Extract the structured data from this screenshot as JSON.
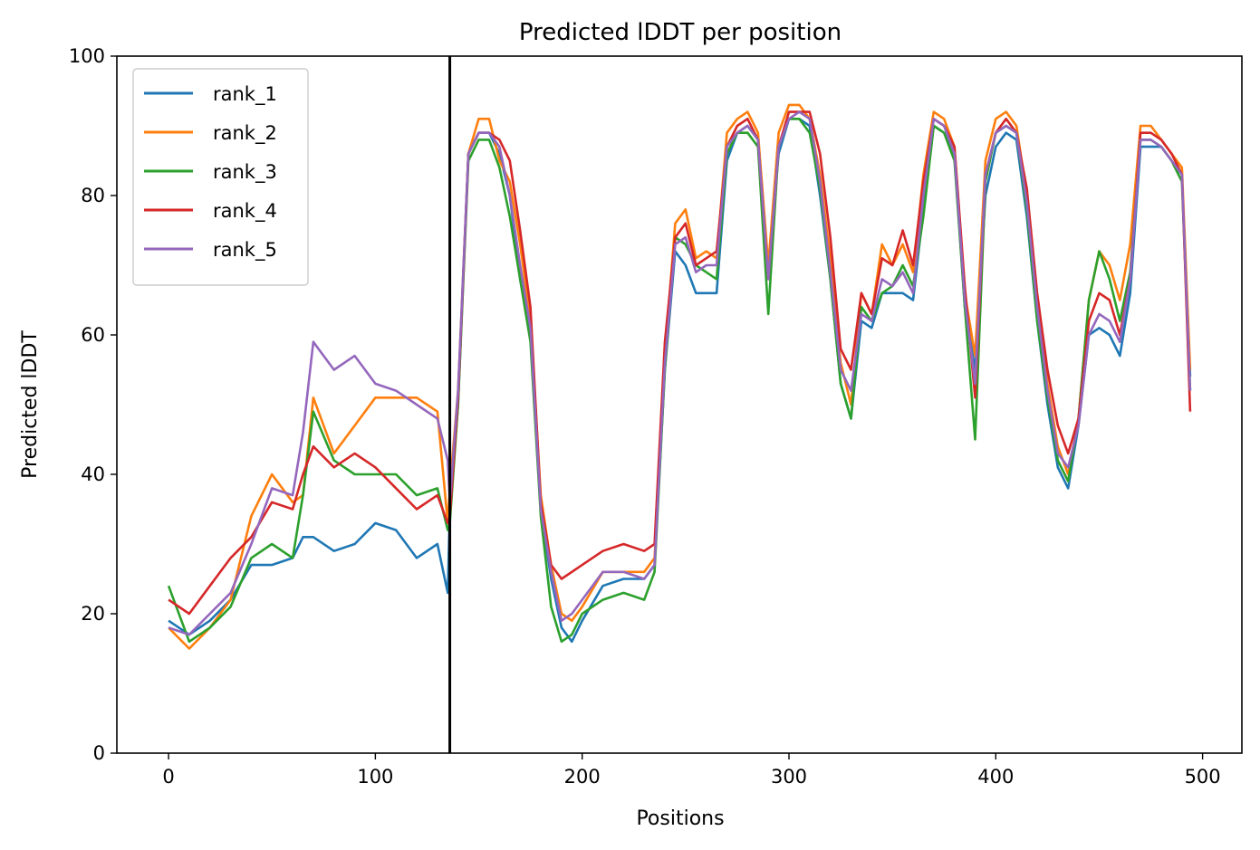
{
  "chart_data": {
    "type": "line",
    "title": "Predicted lDDT per position",
    "xlabel": "Positions",
    "ylabel": "Predicted lDDT",
    "xlim": [
      -25,
      519
    ],
    "ylim": [
      0,
      100
    ],
    "xticks": [
      0,
      100,
      200,
      300,
      400,
      500
    ],
    "yticks": [
      0,
      20,
      40,
      60,
      80,
      100
    ],
    "grid": false,
    "legend_position": "upper-left",
    "vline_x": 136,
    "colors": {
      "rank_1": "#1f77b4",
      "rank_2": "#ff7f0e",
      "rank_3": "#2ca02c",
      "rank_4": "#d62728",
      "rank_5": "#9467bd",
      "vline": "#000000"
    },
    "x": [
      0,
      10,
      20,
      30,
      40,
      50,
      60,
      65,
      70,
      80,
      90,
      100,
      110,
      120,
      130,
      135,
      136,
      140,
      145,
      150,
      155,
      160,
      165,
      170,
      175,
      180,
      185,
      190,
      195,
      200,
      210,
      220,
      230,
      235,
      240,
      245,
      250,
      255,
      260,
      265,
      270,
      275,
      280,
      285,
      290,
      295,
      300,
      305,
      310,
      315,
      320,
      325,
      330,
      335,
      340,
      345,
      350,
      355,
      360,
      365,
      370,
      375,
      380,
      385,
      390,
      395,
      400,
      405,
      410,
      415,
      420,
      425,
      430,
      435,
      440,
      445,
      450,
      455,
      460,
      465,
      470,
      475,
      480,
      485,
      490,
      494
    ],
    "series": [
      {
        "name": "rank_1",
        "values": [
          19,
          17,
          19,
          22,
          27,
          27,
          28,
          31,
          31,
          29,
          30,
          33,
          32,
          28,
          30,
          23,
          35,
          50,
          86,
          89,
          89,
          86,
          80,
          68,
          60,
          35,
          25,
          18,
          16,
          19,
          24,
          25,
          25,
          27,
          55,
          72,
          70,
          66,
          66,
          66,
          85,
          89,
          90,
          88,
          69,
          86,
          91,
          91,
          90,
          80,
          68,
          53,
          48,
          62,
          61,
          66,
          66,
          66,
          65,
          78,
          90,
          89,
          86,
          64,
          55,
          80,
          87,
          89,
          88,
          77,
          62,
          50,
          41,
          38,
          47,
          60,
          61,
          60,
          57,
          66,
          87,
          87,
          87,
          85,
          83,
          54
        ]
      },
      {
        "name": "rank_2",
        "values": [
          18,
          15,
          18,
          22,
          34,
          40,
          36,
          37,
          51,
          43,
          47,
          51,
          51,
          51,
          49,
          33,
          38,
          52,
          86,
          91,
          91,
          85,
          82,
          73,
          62,
          37,
          27,
          20,
          19,
          21,
          26,
          26,
          26,
          28,
          57,
          76,
          78,
          71,
          72,
          71,
          89,
          91,
          92,
          89,
          70,
          89,
          93,
          93,
          91,
          83,
          71,
          56,
          50,
          66,
          63,
          73,
          70,
          73,
          69,
          83,
          92,
          91,
          87,
          66,
          57,
          85,
          91,
          92,
          90,
          80,
          64,
          53,
          44,
          40,
          48,
          65,
          72,
          70,
          65,
          73,
          90,
          90,
          88,
          86,
          84,
          55
        ]
      },
      {
        "name": "rank_3",
        "values": [
          24,
          16,
          18,
          21,
          28,
          30,
          28,
          37,
          49,
          42,
          40,
          40,
          40,
          37,
          38,
          32,
          33,
          50,
          85,
          88,
          88,
          84,
          77,
          68,
          59,
          34,
          21,
          16,
          17,
          20,
          22,
          23,
          22,
          26,
          55,
          74,
          73,
          70,
          69,
          68,
          86,
          89,
          89,
          87,
          63,
          87,
          91,
          91,
          89,
          81,
          68,
          53,
          48,
          64,
          62,
          66,
          67,
          70,
          67,
          77,
          90,
          89,
          85,
          64,
          45,
          82,
          89,
          90,
          89,
          78,
          62,
          51,
          42,
          39,
          48,
          65,
          72,
          68,
          62,
          69,
          88,
          88,
          87,
          85,
          82,
          52
        ]
      },
      {
        "name": "rank_4",
        "values": [
          22,
          20,
          24,
          28,
          31,
          36,
          35,
          40,
          44,
          41,
          43,
          41,
          38,
          35,
          37,
          33,
          34,
          51,
          86,
          89,
          89,
          88,
          85,
          75,
          64,
          36,
          27,
          25,
          26,
          27,
          29,
          30,
          29,
          30,
          59,
          74,
          76,
          70,
          71,
          72,
          87,
          90,
          91,
          88,
          68,
          87,
          92,
          92,
          92,
          86,
          74,
          58,
          55,
          66,
          63,
          71,
          70,
          75,
          70,
          82,
          91,
          90,
          87,
          67,
          51,
          83,
          89,
          91,
          89,
          81,
          66,
          55,
          47,
          43,
          48,
          62,
          66,
          65,
          60,
          68,
          89,
          89,
          88,
          86,
          83,
          49
        ]
      },
      {
        "name": "rank_5",
        "values": [
          18,
          17,
          20,
          23,
          30,
          38,
          37,
          46,
          59,
          55,
          57,
          53,
          52,
          50,
          48,
          42,
          36,
          52,
          86,
          89,
          89,
          87,
          80,
          70,
          61,
          35,
          26,
          19,
          20,
          22,
          26,
          26,
          25,
          27,
          56,
          73,
          74,
          69,
          70,
          70,
          87,
          89,
          90,
          88,
          68,
          87,
          91,
          92,
          91,
          82,
          69,
          55,
          52,
          63,
          62,
          68,
          67,
          69,
          66,
          80,
          91,
          90,
          86,
          65,
          53,
          83,
          89,
          90,
          89,
          79,
          64,
          52,
          43,
          41,
          47,
          60,
          63,
          62,
          59,
          68,
          88,
          88,
          87,
          85,
          83,
          52
        ]
      }
    ]
  }
}
